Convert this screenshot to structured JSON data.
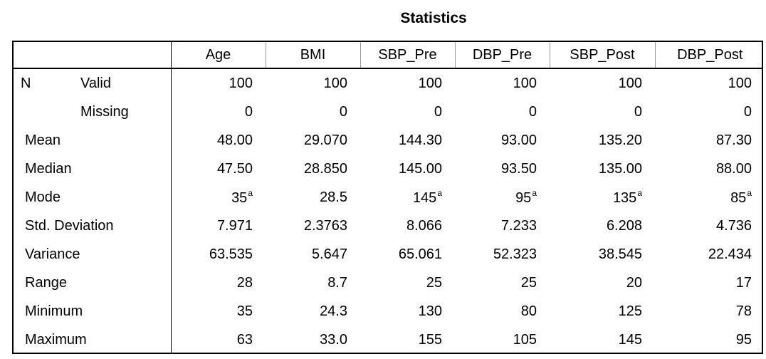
{
  "title": "Statistics",
  "columns": [
    "Age",
    "BMI",
    "SBP_Pre",
    "DBP_Pre",
    "SBP_Post",
    "DBP_Post"
  ],
  "n_label": "N",
  "n_rows": [
    {
      "label": "Valid",
      "values": [
        "100",
        "100",
        "100",
        "100",
        "100",
        "100"
      ]
    },
    {
      "label": "Missing",
      "values": [
        "0",
        "0",
        "0",
        "0",
        "0",
        "0"
      ]
    }
  ],
  "rows": [
    {
      "label": "Mean",
      "values": [
        "48.00",
        "29.070",
        "144.30",
        "93.00",
        "135.20",
        "87.30"
      ],
      "sup": [
        "",
        "",
        "",
        "",
        "",
        ""
      ]
    },
    {
      "label": "Median",
      "values": [
        "47.50",
        "28.850",
        "145.00",
        "93.50",
        "135.00",
        "88.00"
      ],
      "sup": [
        "",
        "",
        "",
        "",
        "",
        ""
      ]
    },
    {
      "label": "Mode",
      "values": [
        "35",
        "28.5",
        "145",
        "95",
        "135",
        "85"
      ],
      "sup": [
        "a",
        "",
        "a",
        "a",
        "a",
        "a"
      ]
    },
    {
      "label": "Std. Deviation",
      "values": [
        "7.971",
        "2.3763",
        "8.066",
        "7.233",
        "6.208",
        "4.736"
      ],
      "sup": [
        "",
        "",
        "",
        "",
        "",
        ""
      ]
    },
    {
      "label": "Variance",
      "values": [
        "63.535",
        "5.647",
        "65.061",
        "52.323",
        "38.545",
        "22.434"
      ],
      "sup": [
        "",
        "",
        "",
        "",
        "",
        ""
      ]
    },
    {
      "label": "Range",
      "values": [
        "28",
        "8.7",
        "25",
        "25",
        "20",
        "17"
      ],
      "sup": [
        "",
        "",
        "",
        "",
        "",
        ""
      ]
    },
    {
      "label": "Minimum",
      "values": [
        "35",
        "24.3",
        "130",
        "80",
        "125",
        "78"
      ],
      "sup": [
        "",
        "",
        "",
        "",
        "",
        ""
      ]
    },
    {
      "label": "Maximum",
      "values": [
        "63",
        "33.0",
        "155",
        "105",
        "145",
        "95"
      ],
      "sup": [
        "",
        "",
        "",
        "",
        "",
        ""
      ]
    }
  ]
}
